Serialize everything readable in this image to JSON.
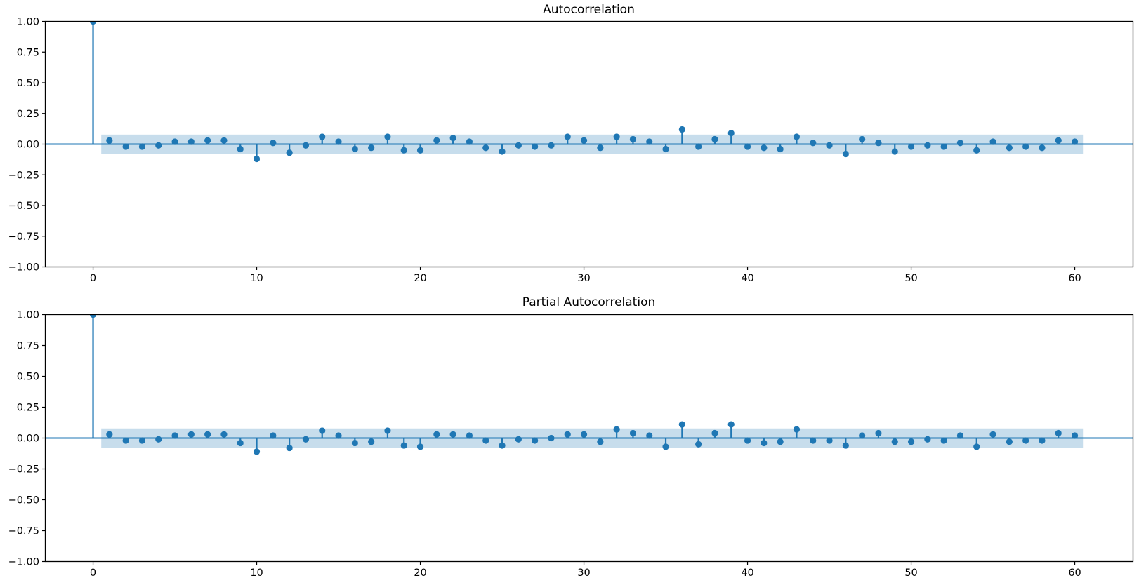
{
  "figure": {
    "background": "#ffffff"
  },
  "colors": {
    "series": "#1f77b4",
    "confidence_band_fill": "#c7ddec",
    "spine": "#000000",
    "tick_text": "#000000"
  },
  "chart_data": [
    {
      "type": "stem",
      "title": "Autocorrelation",
      "xlabel": "",
      "ylabel": "",
      "grid": false,
      "legend": null,
      "xlim": [
        -2.92,
        63.56
      ],
      "ylim": [
        -1.0,
        1.0
      ],
      "xticks": [
        0,
        10,
        20,
        30,
        40,
        50,
        60
      ],
      "xtick_labels": [
        "0",
        "10",
        "20",
        "30",
        "40",
        "50",
        "60"
      ],
      "yticks": [
        1.0,
        0.75,
        0.5,
        0.25,
        0.0,
        -0.25,
        -0.5,
        -0.75,
        -1.0
      ],
      "ytick_labels": [
        "1.00",
        "0.75",
        "0.50",
        "0.25",
        "0.00",
        "−0.25",
        "−0.50",
        "−0.75",
        "−1.00"
      ],
      "confidence_band": {
        "halfwidth": 0.078,
        "x_start": 0.5,
        "x_end": 60.5
      },
      "lags": [
        0,
        1,
        2,
        3,
        4,
        5,
        6,
        7,
        8,
        9,
        10,
        11,
        12,
        13,
        14,
        15,
        16,
        17,
        18,
        19,
        20,
        21,
        22,
        23,
        24,
        25,
        26,
        27,
        28,
        29,
        30,
        31,
        32,
        33,
        34,
        35,
        36,
        37,
        38,
        39,
        40,
        41,
        42,
        43,
        44,
        45,
        46,
        47,
        48,
        49,
        50,
        51,
        52,
        53,
        54,
        55,
        56,
        57,
        58,
        59,
        60
      ],
      "values": [
        1.0,
        0.03,
        -0.02,
        -0.02,
        -0.01,
        0.02,
        0.02,
        0.03,
        0.03,
        -0.04,
        -0.12,
        0.01,
        -0.07,
        -0.01,
        0.06,
        0.02,
        -0.04,
        -0.03,
        0.06,
        -0.05,
        -0.05,
        0.03,
        0.05,
        0.02,
        -0.03,
        -0.06,
        -0.01,
        -0.02,
        -0.01,
        0.06,
        0.03,
        -0.03,
        0.06,
        0.04,
        0.02,
        -0.04,
        0.12,
        -0.02,
        0.04,
        0.09,
        -0.02,
        -0.03,
        -0.04,
        0.06,
        0.01,
        -0.01,
        -0.08,
        0.04,
        0.01,
        -0.06,
        -0.02,
        -0.01,
        -0.02,
        0.01,
        -0.05,
        0.02,
        -0.03,
        -0.02,
        -0.03,
        0.03,
        0.02
      ]
    },
    {
      "type": "stem",
      "title": "Partial Autocorrelation",
      "xlabel": "",
      "ylabel": "",
      "grid": false,
      "legend": null,
      "xlim": [
        -2.92,
        63.56
      ],
      "ylim": [
        -1.0,
        1.0
      ],
      "xticks": [
        0,
        10,
        20,
        30,
        40,
        50,
        60
      ],
      "xtick_labels": [
        "0",
        "10",
        "20",
        "30",
        "40",
        "50",
        "60"
      ],
      "yticks": [
        1.0,
        0.75,
        0.5,
        0.25,
        0.0,
        -0.25,
        -0.5,
        -0.75,
        -1.0
      ],
      "ytick_labels": [
        "1.00",
        "0.75",
        "0.50",
        "0.25",
        "0.00",
        "−0.25",
        "−0.50",
        "−0.75",
        "−1.00"
      ],
      "confidence_band": {
        "halfwidth": 0.078,
        "x_start": 0.5,
        "x_end": 60.5
      },
      "lags": [
        0,
        1,
        2,
        3,
        4,
        5,
        6,
        7,
        8,
        9,
        10,
        11,
        12,
        13,
        14,
        15,
        16,
        17,
        18,
        19,
        20,
        21,
        22,
        23,
        24,
        25,
        26,
        27,
        28,
        29,
        30,
        31,
        32,
        33,
        34,
        35,
        36,
        37,
        38,
        39,
        40,
        41,
        42,
        43,
        44,
        45,
        46,
        47,
        48,
        49,
        50,
        51,
        52,
        53,
        54,
        55,
        56,
        57,
        58,
        59,
        60
      ],
      "values": [
        1.0,
        0.03,
        -0.02,
        -0.02,
        -0.01,
        0.02,
        0.03,
        0.03,
        0.03,
        -0.04,
        -0.11,
        0.02,
        -0.08,
        -0.01,
        0.06,
        0.02,
        -0.04,
        -0.03,
        0.06,
        -0.06,
        -0.07,
        0.03,
        0.03,
        0.02,
        -0.02,
        -0.06,
        -0.01,
        -0.02,
        0.0,
        0.03,
        0.03,
        -0.03,
        0.07,
        0.04,
        0.02,
        -0.07,
        0.11,
        -0.05,
        0.04,
        0.11,
        -0.02,
        -0.04,
        -0.03,
        0.07,
        -0.02,
        -0.02,
        -0.06,
        0.02,
        0.04,
        -0.03,
        -0.03,
        -0.01,
        -0.02,
        0.02,
        -0.07,
        0.03,
        -0.03,
        -0.02,
        -0.02,
        0.04,
        0.02
      ]
    }
  ]
}
